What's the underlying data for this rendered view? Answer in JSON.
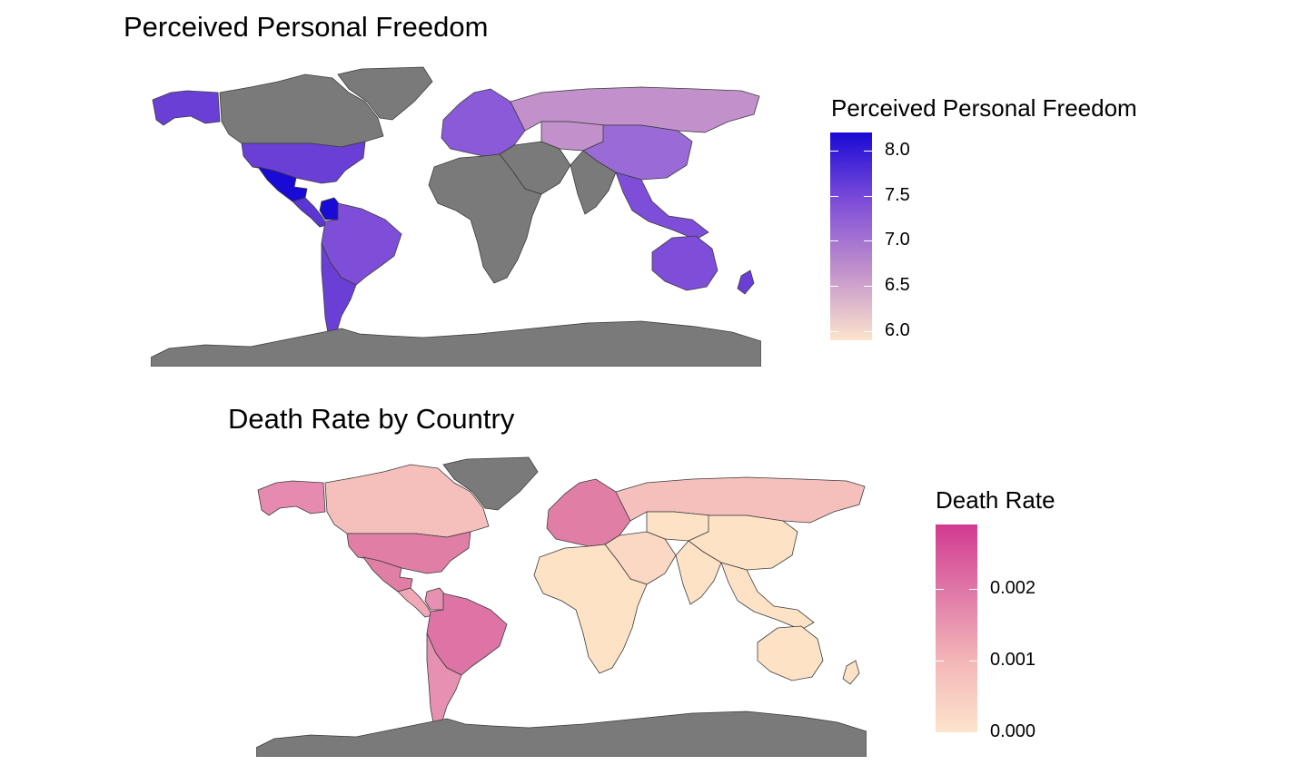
{
  "maps": [
    {
      "title": "Perceived Personal Freedom",
      "legend": {
        "title": "Perceived Personal Freedom",
        "ticks": [
          "8.0",
          "7.5",
          "7.0",
          "6.5",
          "6.0"
        ],
        "tick_values": [
          8.0,
          7.5,
          7.0,
          6.5,
          6.0
        ],
        "range": [
          5.9,
          8.2
        ],
        "colors": [
          "#fce4cc",
          "#c291cc",
          "#7e4ed8",
          "#1a0ad6"
        ]
      },
      "missing_color": "#7a7a7a",
      "regions": {
        "north_america_usa": "#6a3fd6",
        "canada": "#7a7a7a",
        "alaska": "#6a3fd6",
        "greenland": "#7a7a7a",
        "mexico": "#1a0ad6",
        "central_america": "#5a36d2",
        "south_america_north": "#7e4ed8",
        "colombia": "#1a0ad6",
        "south_america_south": "#6a3fd6",
        "europe": "#8a5ad8",
        "russia": "#c291cc",
        "africa": "#7a7a7a",
        "middle_east": "#7a7a7a",
        "central_asia": "#c291cc",
        "china": "#9a6ad6",
        "india": "#7a7a7a",
        "southeast_asia": "#7e4ed8",
        "australia": "#7e4ed8",
        "new_zealand": "#6a3fd6",
        "antarctica": "#7a7a7a"
      }
    },
    {
      "title": "Death Rate by Country",
      "legend": {
        "title": "Death Rate",
        "ticks": [
          "0.002",
          "0.001",
          "0.000"
        ],
        "tick_values": [
          0.002,
          0.001,
          0.0
        ],
        "range": [
          0.0,
          0.0029
        ],
        "colors": [
          "#fce4cc",
          "#f4b8b8",
          "#e07aa8",
          "#d23a90"
        ]
      },
      "missing_color": "#7a7a7a",
      "regions": {
        "north_america_usa": "#e07ea6",
        "canada": "#f5c0bc",
        "alaska": "#e68ab0",
        "greenland": "#7a7a7a",
        "mexico": "#e07ea6",
        "central_america": "#f0a8b8",
        "south_america_north": "#de74a6",
        "colombia": "#e690b2",
        "south_america_south": "#e690b2",
        "europe": "#e07ea6",
        "russia": "#f5c0bc",
        "africa": "#fde2c6",
        "middle_east": "#fbd8c4",
        "central_asia": "#fde2c6",
        "china": "#fde2c6",
        "india": "#fde2c6",
        "southeast_asia": "#fde2c6",
        "australia": "#fde2c6",
        "new_zealand": "#fde2c6",
        "antarctica": "#7a7a7a"
      }
    }
  ]
}
